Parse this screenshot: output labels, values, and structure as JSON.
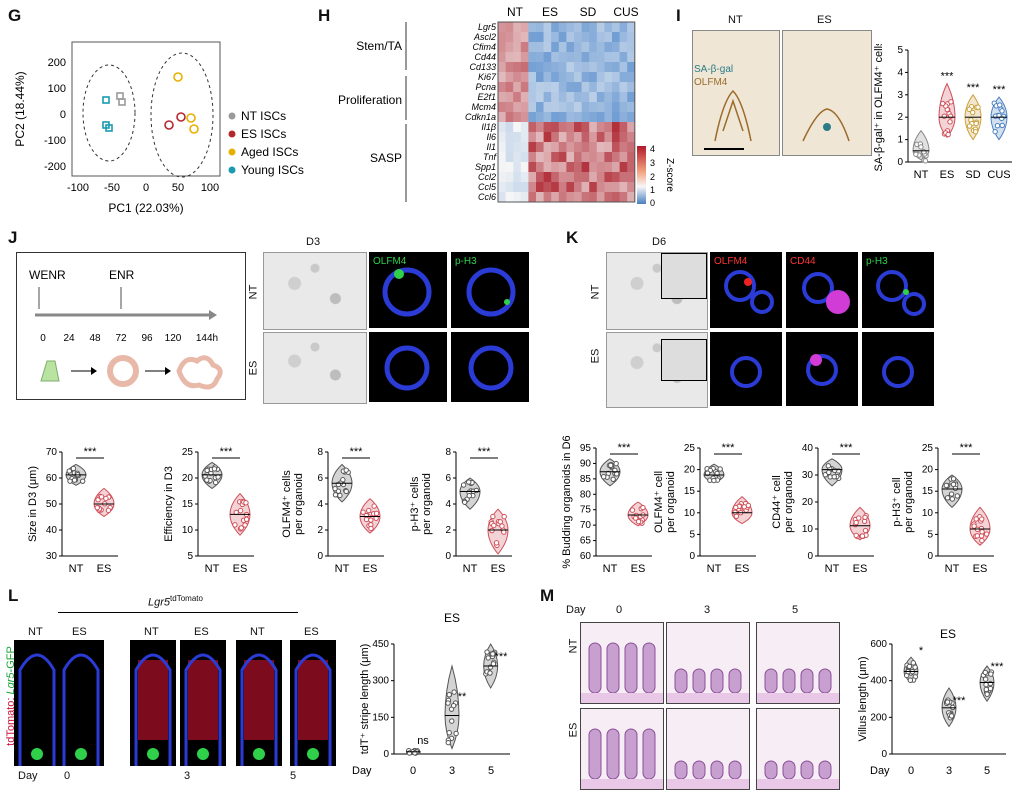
{
  "panels": {
    "G": "G",
    "H": "H",
    "I": "I",
    "J": "J",
    "K": "K",
    "L": "L",
    "M": "M"
  },
  "G": {
    "xlabel": "PC1 (22.03%)",
    "ylabel": "PC2 (18.44%)",
    "xticks": [
      "-100",
      "-50",
      "0",
      "50",
      "100"
    ],
    "yticks": [
      "200",
      "100",
      "0",
      "-100",
      "-200"
    ],
    "legend": [
      "NT ISCs",
      "ES ISCs",
      "Aged ISCs",
      "Young ISCs"
    ],
    "colors": {
      "NT": "#9a9a9a",
      "ES": "#b5272e",
      "Aged": "#e9b000",
      "Young": "#1a9bb0"
    }
  },
  "H": {
    "cols": [
      "NT",
      "ES",
      "SD",
      "CUS"
    ],
    "groups": [
      "Stem/TA",
      "Proliferation",
      "SASP"
    ],
    "genes": [
      "Lgr5",
      "Ascl2",
      "Cfim4",
      "Cd44",
      "Cd133",
      "Ki67",
      "Pcna",
      "E2f1",
      "Mcm4",
      "Cdkn1a",
      "Il1β",
      "Il6",
      "Il1",
      "Tnf",
      "Spp1",
      "Ccl2",
      "Ccl5",
      "Ccl6"
    ],
    "scale_title": "Z-score",
    "scale_ticks": [
      "4",
      "3",
      "2",
      "1",
      "0"
    ]
  },
  "I": {
    "img_titles": [
      "NT",
      "ES"
    ],
    "stain1": "SA-β-gal",
    "stain2": "OLFM4",
    "ylabel": "SA-β-gal⁺ in OLFM4⁺ cells",
    "yticks": [
      "5",
      "4",
      "3",
      "2",
      "1",
      "0"
    ],
    "cats": [
      "NT",
      "ES",
      "SD",
      "CUS"
    ],
    "sig": [
      "",
      "***",
      "***",
      "***"
    ]
  },
  "J": {
    "schematic": {
      "t1": "WENR",
      "t2": "ENR",
      "ticks": [
        "0",
        "24",
        "48",
        "72",
        "96",
        "120",
        "144h"
      ]
    },
    "img_title": "D3",
    "rows": [
      "NT",
      "ES"
    ],
    "stain1": "OLFM4",
    "stain2": "p-H3",
    "plots": [
      {
        "ylabel": "Size in D3 (μm)",
        "yticks": [
          "70",
          "60",
          "50",
          "40",
          "30"
        ],
        "sig": "***"
      },
      {
        "ylabel": "Efficiency in D3",
        "yticks": [
          "25",
          "20",
          "15",
          "10",
          "5"
        ],
        "sig": "***"
      },
      {
        "ylabel": "OLFM4⁺ cells per organoid",
        "yticks": [
          "8",
          "6",
          "4",
          "2",
          "0"
        ],
        "sig": "***"
      },
      {
        "ylabel": "p-H3⁺ cells per organoid",
        "yticks": [
          "8",
          "6",
          "4",
          "2",
          "0"
        ],
        "sig": "***"
      }
    ],
    "cats": [
      "NT",
      "ES"
    ]
  },
  "K": {
    "img_title": "D6",
    "rows": [
      "NT",
      "ES"
    ],
    "stain1": "OLFM4",
    "stain2": "CD44",
    "stain3": "p-H3",
    "plots": [
      {
        "ylabel": "% Budding organoids in D6",
        "yticks": [
          "95",
          "90",
          "85",
          "80",
          "75",
          "70",
          "65",
          "60"
        ],
        "sig": "***"
      },
      {
        "ylabel": "OLFM4⁺ cell per organoid",
        "yticks": [
          "25",
          "20",
          "15",
          "10",
          "5",
          "0"
        ],
        "sig": "***"
      },
      {
        "ylabel": "CD44⁺ cell per organoid",
        "yticks": [
          "40",
          "30",
          "20",
          "10",
          "0"
        ],
        "sig": "***"
      },
      {
        "ylabel": "p-H3⁺ cell per organoid",
        "yticks": [
          "25",
          "20",
          "15",
          "10",
          "5",
          "0"
        ],
        "sig": "***"
      }
    ],
    "cats": [
      "NT",
      "ES"
    ]
  },
  "L": {
    "title": "Lgr5",
    "title_sup": "tdTomato",
    "cols": [
      "NT",
      "ES",
      "NT",
      "ES",
      "NT",
      "ES"
    ],
    "side1": "tdTomato; ",
    "side2": "Lgr5",
    "side3": "-GFP",
    "day": "Day",
    "days": [
      "0",
      "3",
      "5"
    ],
    "plot_title": "ES",
    "ylabel": "tdT⁺ stripe length (μm)",
    "yticks": [
      "450",
      "300",
      "150",
      "0"
    ],
    "sig": [
      "ns",
      "**",
      "***"
    ]
  },
  "M": {
    "day": "Day",
    "days": [
      "0",
      "3",
      "5"
    ],
    "rows": [
      "NT",
      "ES"
    ],
    "plot_title": "ES",
    "ylabel": "Villus length (μm)",
    "yticks": [
      "600",
      "400",
      "200",
      "0"
    ],
    "sig": [
      "*",
      "***",
      "***"
    ]
  }
}
